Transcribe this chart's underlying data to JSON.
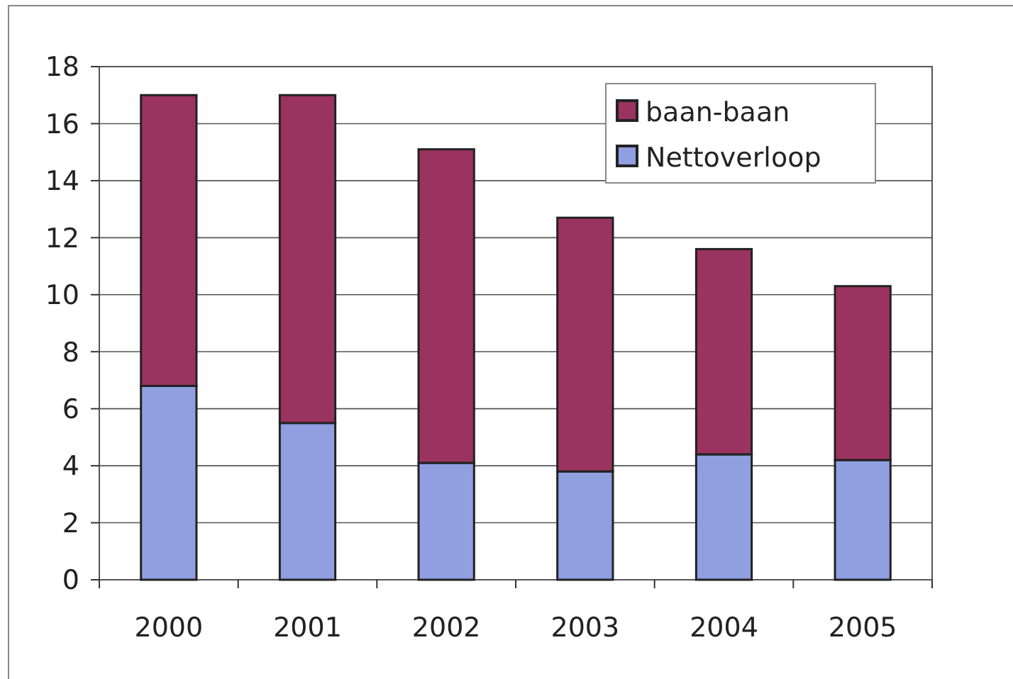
{
  "chart_data": {
    "type": "bar",
    "stacked": true,
    "categories": [
      "2000",
      "2001",
      "2002",
      "2003",
      "2004",
      "2005"
    ],
    "series": [
      {
        "name": "Nettoverloop",
        "color": "#8f9fe0",
        "values": [
          6.8,
          5.5,
          4.1,
          3.8,
          4.4,
          4.2
        ]
      },
      {
        "name": "baan-baan",
        "color": "#9b3360",
        "values": [
          10.2,
          11.5,
          11.0,
          8.9,
          7.2,
          6.1
        ]
      }
    ],
    "ylim": [
      0,
      18
    ],
    "yticks": [
      0,
      2,
      4,
      6,
      8,
      10,
      12,
      14,
      16,
      18
    ],
    "grid": "y",
    "legend": "top right"
  }
}
